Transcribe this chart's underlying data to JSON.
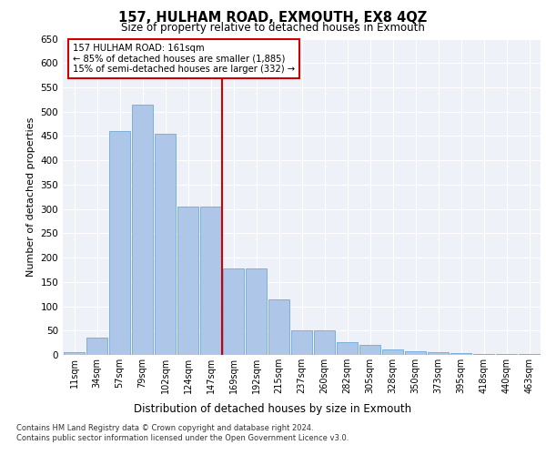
{
  "title": "157, HULHAM ROAD, EXMOUTH, EX8 4QZ",
  "subtitle": "Size of property relative to detached houses in Exmouth",
  "xlabel": "Distribution of detached houses by size in Exmouth",
  "ylabel": "Number of detached properties",
  "categories": [
    "11sqm",
    "34sqm",
    "57sqm",
    "79sqm",
    "102sqm",
    "124sqm",
    "147sqm",
    "169sqm",
    "192sqm",
    "215sqm",
    "237sqm",
    "260sqm",
    "282sqm",
    "305sqm",
    "328sqm",
    "350sqm",
    "373sqm",
    "395sqm",
    "418sqm",
    "440sqm",
    "463sqm"
  ],
  "values": [
    5,
    35,
    460,
    515,
    455,
    305,
    305,
    178,
    178,
    115,
    50,
    50,
    27,
    20,
    12,
    7,
    5,
    3,
    2,
    1,
    1
  ],
  "bar_color": "#aec6e8",
  "bar_edge_color": "#5a9fd4",
  "reference_line_x": 7,
  "reference_line_label": "157 HULHAM ROAD: 161sqm",
  "annotation_line1": "← 85% of detached houses are smaller (1,885)",
  "annotation_line2": "15% of semi-detached houses are larger (332) →",
  "annotation_box_color": "#ffffff",
  "annotation_box_edge_color": "#cc0000",
  "vline_color": "#cc0000",
  "bg_color": "#eef2f8",
  "grid_color": "#ffffff",
  "footer_line1": "Contains HM Land Registry data © Crown copyright and database right 2024.",
  "footer_line2": "Contains public sector information licensed under the Open Government Licence v3.0.",
  "ylim": [
    0,
    650
  ],
  "yticks": [
    0,
    50,
    100,
    150,
    200,
    250,
    300,
    350,
    400,
    450,
    500,
    550,
    600,
    650
  ]
}
